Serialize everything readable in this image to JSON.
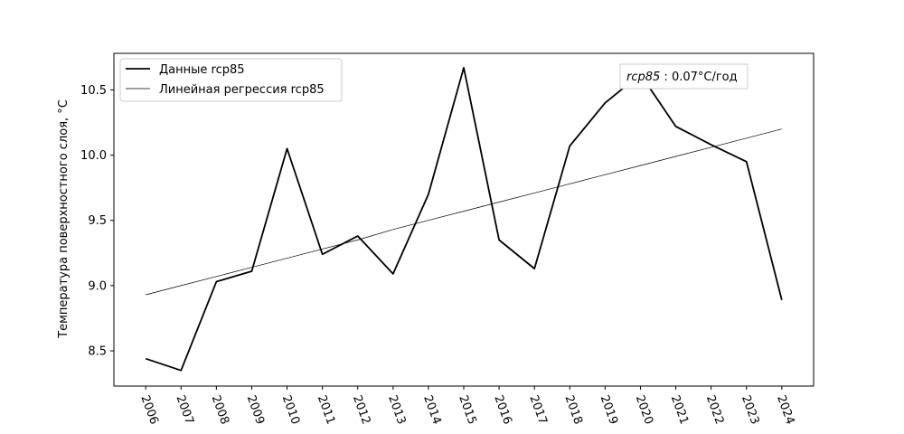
{
  "chart_data": {
    "type": "line",
    "xlabel": "",
    "ylabel": "Температура поверхностного слоя, °C",
    "x": [
      2006,
      2007,
      2008,
      2009,
      2010,
      2011,
      2012,
      2013,
      2014,
      2015,
      2016,
      2017,
      2018,
      2019,
      2020,
      2021,
      2022,
      2023,
      2024
    ],
    "x_tick_labels": [
      "2006",
      "2007",
      "2008",
      "2009",
      "2010",
      "2011",
      "2012",
      "2013",
      "2014",
      "2015",
      "2016",
      "2017",
      "2018",
      "2019",
      "2020",
      "2021",
      "2022",
      "2023",
      "2024"
    ],
    "y_ticks": [
      8.5,
      9.0,
      9.5,
      10.0,
      10.5
    ],
    "y_tick_labels": [
      "8.5",
      "9.0",
      "9.5",
      "10.0",
      "10.5"
    ],
    "xlim": [
      2005.1,
      2024.9
    ],
    "ylim": [
      8.23,
      10.78
    ],
    "grid": false,
    "legend_position": "top-left",
    "series": [
      {
        "name": "Данные rcp85",
        "color": "#000000",
        "style": "thick",
        "values": [
          8.44,
          8.35,
          9.03,
          9.11,
          10.05,
          9.24,
          9.38,
          9.09,
          9.7,
          10.67,
          9.35,
          9.13,
          10.07,
          10.4,
          10.62,
          10.22,
          10.08,
          9.95,
          8.89
        ]
      },
      {
        "name": "Линейная регрессия rcp85",
        "color": "#000000",
        "style": "thin",
        "values": [
          8.93,
          9.0,
          9.07,
          9.14,
          9.21,
          9.28,
          9.35,
          9.43,
          9.5,
          9.57,
          9.64,
          9.71,
          9.78,
          9.85,
          9.92,
          9.99,
          10.06,
          10.13,
          10.2
        ]
      }
    ],
    "annotation": {
      "text_italic": "rcp85",
      "text_rest": " : 0.07°C/год",
      "position": "top-right"
    }
  }
}
